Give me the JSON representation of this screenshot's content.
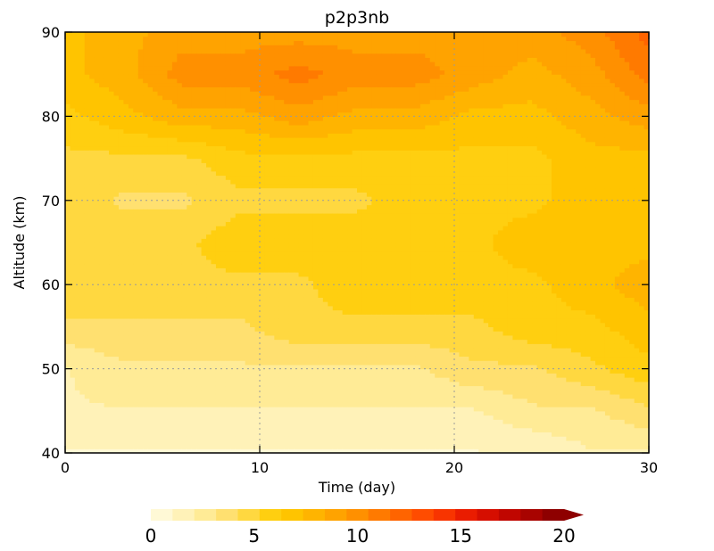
{
  "chart_data": {
    "type": "heatmap",
    "title": "p2p3nb",
    "xlabel": "Time (day)",
    "ylabel": "Altitude (km)",
    "xlim": [
      0,
      30
    ],
    "ylim": [
      40,
      90
    ],
    "x_ticks": [
      0,
      10,
      20,
      30
    ],
    "y_ticks": [
      40,
      50,
      60,
      70,
      80,
      90
    ],
    "grid": true,
    "x_tick_labels": [
      "0",
      "10",
      "20",
      "30"
    ],
    "y_tick_labels": [
      "40",
      "50",
      "60",
      "70",
      "80",
      "90"
    ],
    "colorbar": {
      "min": 0,
      "max": 20,
      "labels": [
        "0",
        "5",
        "10",
        "15",
        "20"
      ],
      "label_values": [
        0,
        5,
        10,
        15,
        20
      ],
      "extend": "max",
      "colors": [
        "#fff9d6",
        "#fff2b8",
        "#ffeb96",
        "#ffe070",
        "#ffd840",
        "#ffcf10",
        "#ffc400",
        "#ffb400",
        "#ffa300",
        "#ff9000",
        "#ff7a00",
        "#ff6400",
        "#ff4c00",
        "#f83400",
        "#ea1c00",
        "#d60e00",
        "#c00600",
        "#a80300",
        "#8e0000"
      ]
    },
    "altitudes": [
      40,
      45,
      50,
      55,
      60,
      65,
      70,
      75,
      80,
      85,
      90
    ],
    "day_samples": [
      0,
      3,
      6,
      9,
      12,
      15,
      18,
      21,
      24,
      27,
      30
    ],
    "values": [
      [
        1,
        1,
        1,
        1,
        1,
        1,
        1,
        1,
        1,
        2,
        2
      ],
      [
        2,
        2,
        2,
        2,
        2,
        2,
        2,
        2,
        3,
        3,
        4
      ],
      [
        2,
        3,
        3,
        3,
        3,
        3,
        3,
        4,
        4,
        5,
        6
      ],
      [
        4,
        4,
        4,
        4,
        5,
        5,
        5,
        5,
        6,
        6,
        7
      ],
      [
        5,
        5,
        5,
        5,
        5,
        6,
        6,
        6,
        6,
        7,
        8
      ],
      [
        5,
        5,
        5,
        6,
        6,
        6,
        6,
        6,
        7,
        7,
        7
      ],
      [
        5,
        4,
        4,
        5,
        5,
        5,
        6,
        6,
        6,
        7,
        7
      ],
      [
        5,
        5,
        5,
        6,
        6,
        6,
        6,
        6,
        6,
        7,
        7
      ],
      [
        6,
        7,
        8,
        8,
        9,
        8,
        8,
        7,
        7,
        8,
        9
      ],
      [
        7,
        8,
        10,
        10,
        11,
        10,
        10,
        9,
        8,
        9,
        11
      ],
      [
        7,
        8,
        9,
        9,
        9,
        9,
        9,
        9,
        9,
        10,
        12
      ]
    ]
  }
}
